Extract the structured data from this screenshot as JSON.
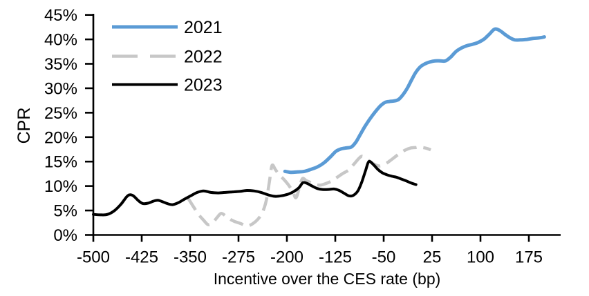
{
  "chart_data": {
    "type": "line",
    "title": "",
    "xlabel": "Incentive over the CES rate (bp)",
    "ylabel": "CPR",
    "xlim": [
      -500,
      225
    ],
    "ylim": [
      0,
      45
    ],
    "x_ticks": [
      -500,
      -425,
      -350,
      -275,
      -200,
      -125,
      -50,
      25,
      100,
      175
    ],
    "y_ticks": [
      0,
      5,
      10,
      15,
      20,
      25,
      30,
      35,
      40,
      45
    ],
    "y_tick_suffix": "%",
    "grid": false,
    "legend_position": "top-left",
    "axis_color": "#000000",
    "series": [
      {
        "name": "2021",
        "color": "#5B9BD5",
        "style": "solid",
        "points": [
          [
            -203,
            13.0
          ],
          [
            -193,
            12.8
          ],
          [
            -183,
            12.9
          ],
          [
            -173,
            13.0
          ],
          [
            -163,
            13.4
          ],
          [
            -153,
            13.9
          ],
          [
            -143,
            14.7
          ],
          [
            -133,
            15.9
          ],
          [
            -124,
            17.1
          ],
          [
            -116,
            17.6
          ],
          [
            -108,
            17.8
          ],
          [
            -100,
            18.0
          ],
          [
            -93,
            19.0
          ],
          [
            -86,
            20.6
          ],
          [
            -79,
            22.2
          ],
          [
            -71,
            23.8
          ],
          [
            -63,
            25.2
          ],
          [
            -55,
            26.4
          ],
          [
            -48,
            27.1
          ],
          [
            -41,
            27.3
          ],
          [
            -34,
            27.4
          ],
          [
            -27,
            27.7
          ],
          [
            -20,
            28.7
          ],
          [
            -13,
            30.1
          ],
          [
            -6,
            31.9
          ],
          [
            0,
            33.3
          ],
          [
            7,
            34.4
          ],
          [
            14,
            35.0
          ],
          [
            22,
            35.4
          ],
          [
            30,
            35.6
          ],
          [
            38,
            35.6
          ],
          [
            46,
            35.6
          ],
          [
            54,
            36.4
          ],
          [
            62,
            37.5
          ],
          [
            70,
            38.2
          ],
          [
            79,
            38.7
          ],
          [
            88,
            39.0
          ],
          [
            97,
            39.4
          ],
          [
            106,
            40.1
          ],
          [
            114,
            41.1
          ],
          [
            122,
            42.1
          ],
          [
            130,
            41.8
          ],
          [
            138,
            41.0
          ],
          [
            146,
            40.3
          ],
          [
            153,
            39.9
          ],
          [
            162,
            39.9
          ],
          [
            172,
            40.0
          ],
          [
            182,
            40.2
          ],
          [
            191,
            40.3
          ],
          [
            199,
            40.5
          ]
        ]
      },
      {
        "name": "2022",
        "color": "#C7C7C7",
        "style": "dashed",
        "points": [
          [
            -353,
            7.5
          ],
          [
            -345,
            5.8
          ],
          [
            -337,
            4.2
          ],
          [
            -329,
            3.0
          ],
          [
            -322,
            2.1
          ],
          [
            -315,
            2.5
          ],
          [
            -308,
            3.6
          ],
          [
            -302,
            4.4
          ],
          [
            -295,
            3.9
          ],
          [
            -288,
            3.2
          ],
          [
            -280,
            2.7
          ],
          [
            -271,
            2.3
          ],
          [
            -262,
            1.8
          ],
          [
            -253,
            2.3
          ],
          [
            -245,
            3.2
          ],
          [
            -238,
            4.6
          ],
          [
            -232,
            7.0
          ],
          [
            -227,
            11.0
          ],
          [
            -223,
            14.2
          ],
          [
            -218,
            13.4
          ],
          [
            -212,
            12.3
          ],
          [
            -205,
            11.4
          ],
          [
            -198,
            10.3
          ],
          [
            -191,
            8.9
          ],
          [
            -186,
            7.6
          ],
          [
            -181,
            9.5
          ],
          [
            -176,
            11.5
          ],
          [
            -170,
            11.1
          ],
          [
            -163,
            10.7
          ],
          [
            -156,
            10.3
          ],
          [
            -148,
            10.2
          ],
          [
            -140,
            10.5
          ],
          [
            -131,
            11.0
          ],
          [
            -122,
            11.8
          ],
          [
            -113,
            12.6
          ],
          [
            -104,
            13.3
          ],
          [
            -96,
            14.5
          ],
          [
            -88,
            15.7
          ],
          [
            -83,
            16.1
          ],
          [
            -76,
            15.5
          ],
          [
            -69,
            14.8
          ],
          [
            -62,
            14.3
          ],
          [
            -56,
            14.1
          ],
          [
            -49,
            14.4
          ],
          [
            -41,
            15.1
          ],
          [
            -33,
            15.9
          ],
          [
            -25,
            16.7
          ],
          [
            -16,
            17.4
          ],
          [
            -8,
            17.8
          ],
          [
            0,
            17.9
          ],
          [
            4,
            18.0
          ],
          [
            10,
            17.9
          ],
          [
            17,
            17.7
          ],
          [
            23,
            17.4
          ]
        ]
      },
      {
        "name": "2023",
        "color": "#000000",
        "style": "solid",
        "points": [
          [
            -500,
            4.2
          ],
          [
            -489,
            4.1
          ],
          [
            -478,
            4.2
          ],
          [
            -467,
            5.0
          ],
          [
            -457,
            6.3
          ],
          [
            -449,
            7.7
          ],
          [
            -444,
            8.2
          ],
          [
            -438,
            8.0
          ],
          [
            -430,
            7.0
          ],
          [
            -423,
            6.4
          ],
          [
            -415,
            6.5
          ],
          [
            -407,
            6.9
          ],
          [
            -400,
            7.1
          ],
          [
            -393,
            6.8
          ],
          [
            -385,
            6.4
          ],
          [
            -377,
            6.2
          ],
          [
            -368,
            6.6
          ],
          [
            -359,
            7.3
          ],
          [
            -349,
            8.0
          ],
          [
            -339,
            8.7
          ],
          [
            -329,
            9.0
          ],
          [
            -318,
            8.7
          ],
          [
            -307,
            8.6
          ],
          [
            -296,
            8.7
          ],
          [
            -284,
            8.8
          ],
          [
            -273,
            8.9
          ],
          [
            -262,
            9.1
          ],
          [
            -251,
            9.0
          ],
          [
            -240,
            8.7
          ],
          [
            -229,
            8.2
          ],
          [
            -219,
            7.9
          ],
          [
            -209,
            8.0
          ],
          [
            -199,
            8.3
          ],
          [
            -189,
            8.9
          ],
          [
            -181,
            9.7
          ],
          [
            -175,
            10.7
          ],
          [
            -168,
            10.5
          ],
          [
            -161,
            10.0
          ],
          [
            -153,
            9.5
          ],
          [
            -145,
            9.3
          ],
          [
            -136,
            9.3
          ],
          [
            -127,
            9.4
          ],
          [
            -119,
            9.1
          ],
          [
            -111,
            8.5
          ],
          [
            -104,
            8.0
          ],
          [
            -97,
            8.1
          ],
          [
            -90,
            9.0
          ],
          [
            -84,
            10.8
          ],
          [
            -78,
            13.2
          ],
          [
            -73,
            15.0
          ],
          [
            -66,
            14.4
          ],
          [
            -59,
            13.4
          ],
          [
            -52,
            12.7
          ],
          [
            -45,
            12.3
          ],
          [
            -37,
            12.0
          ],
          [
            -30,
            11.8
          ],
          [
            -22,
            11.4
          ],
          [
            -14,
            11.0
          ],
          [
            -7,
            10.6
          ],
          [
            0,
            10.3
          ]
        ]
      }
    ]
  },
  "legend": {
    "items": [
      {
        "label": "2021"
      },
      {
        "label": "2022"
      },
      {
        "label": "2023"
      }
    ]
  }
}
